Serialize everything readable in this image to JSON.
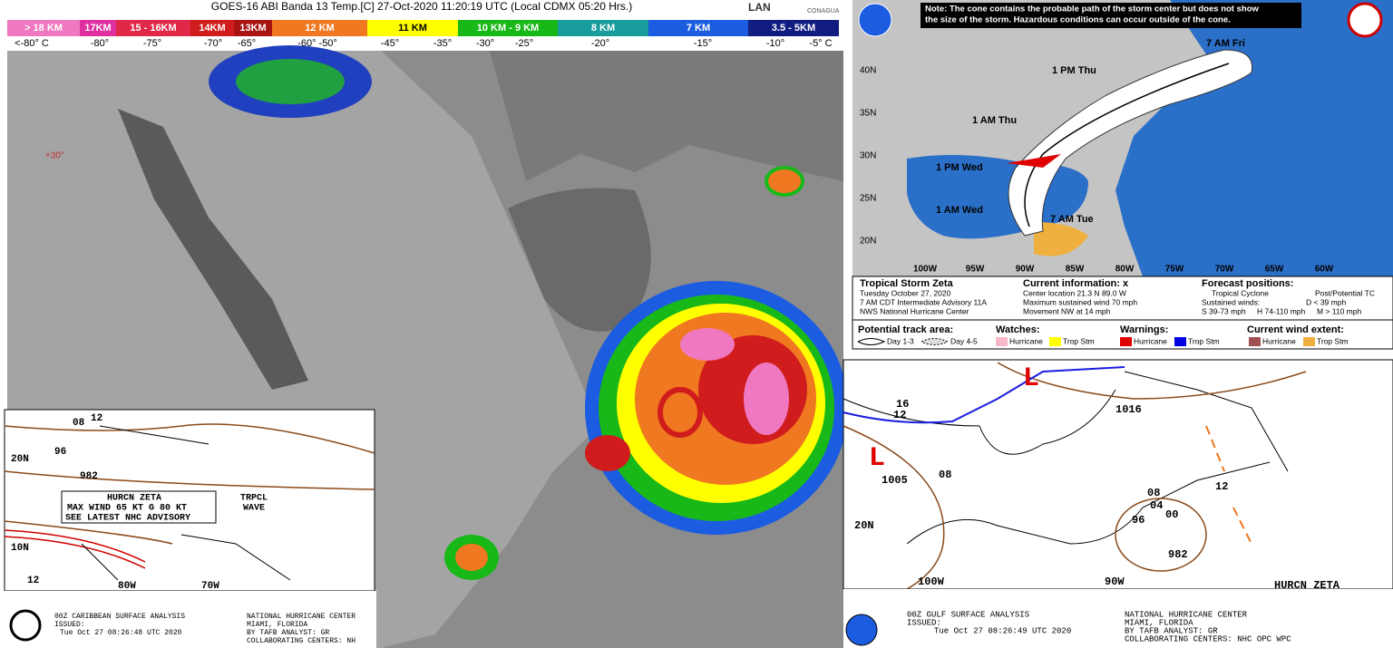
{
  "satellite": {
    "title": "GOES-16 ABI Banda 13 Temp.[C] 27-Oct-2020 11:20:19 UTC (Local CDMX  05:20 Hrs.)",
    "scale": [
      {
        "label": "> 18 KM",
        "color": "#f078c0"
      },
      {
        "label": "17KM",
        "color": "#e030a0"
      },
      {
        "label": "15 - 16KM",
        "color": "#e02848"
      },
      {
        "label": "14KM",
        "color": "#d01c1c"
      },
      {
        "label": "13KM",
        "color": "#a81414"
      },
      {
        "label": "12 KM",
        "color": "#f07820"
      },
      {
        "label": "11 KM",
        "color": "#ffff00"
      },
      {
        "label": "10 KM - 9 KM",
        "color": "#18b818"
      },
      {
        "label": "8 KM",
        "color": "#189c9c"
      },
      {
        "label": "7 KM",
        "color": "#1c5ce0"
      },
      {
        "label": "3.5 - 5KM",
        "color": "#101c80"
      }
    ],
    "temps": [
      "<-80° C",
      "-80°",
      "-75°",
      "-70°",
      "-65°",
      "-60° -50°",
      "-45°",
      "-35°",
      "-30°",
      "-25°",
      "-20°",
      "-15°",
      "-10°",
      "-5° C"
    ],
    "logos": [
      "LAN",
      "CONAGUA"
    ],
    "grid_label": "+30°"
  },
  "cone_map": {
    "note": [
      "Note: The cone contains the probable path of the storm center but does not show",
      "the size of the storm. Hazardous conditions can occur outside of the cone."
    ],
    "times": [
      "7 AM Fri",
      "1 PM Thu",
      "1 AM Thu",
      "1 PM Wed",
      "1 AM Wed",
      "7 AM Tue"
    ],
    "lats": [
      "40N",
      "35N",
      "30N",
      "25N",
      "20N"
    ],
    "lons": [
      "100W",
      "95W",
      "90W",
      "85W",
      "80W",
      "75W",
      "70W",
      "65W",
      "60W"
    ],
    "info": [
      "Tropical Storm Zeta",
      "Tuesday October 27, 2020",
      "7 AM CDT Intermediate Advisory 11A",
      "NWS National Hurricane Center",
      "Current information: x",
      "Center location 21.3 N 89.0 W",
      "Maximum sustained wind 70 mph",
      "Movement NW at 14 mph",
      "Forecast positions:",
      "Tropical Cyclone",
      "Post/Potential TC",
      "Sustained winds:",
      "D < 39 mph",
      "S 39-73 mph",
      "H 74-110 mph",
      "M > 110 mph",
      "Potential track area:",
      "Day 1-3",
      "Day 4-5",
      "Watches:",
      "Hurricane",
      "Trop Stm",
      "Warnings:",
      "Hurricane",
      "Trop Stm",
      "Current wind extent:",
      "Hurricane",
      "Trop Stm"
    ]
  },
  "caribbean_analysis": {
    "labels": [
      "HURCN ZETA",
      "MAX WIND 65 KT G 80 KT",
      "SEE LATEST NHC ADVISORY",
      "TRPCL",
      "WAVE",
      "08",
      "12",
      "96",
      "982",
      "20N",
      "10N",
      "80W",
      "70W",
      "12"
    ],
    "footer": [
      "00Z CARIBBEAN SURFACE ANALYSIS",
      "ISSUED:",
      "Tue Oct 27 08:26:48 UTC 2020",
      "NATIONAL HURRICANE CENTER",
      "MIAMI, FLORIDA",
      "BY TAFB ANALYST: GR",
      "COLLABORATING CENTERS: NH"
    ]
  },
  "gulf_analysis": {
    "labels": [
      "1016",
      "16",
      "12",
      "1005",
      "08",
      "08",
      "12",
      "96",
      "04",
      "00",
      "982",
      "HURCN ZETA",
      "100W",
      "90W",
      "20N",
      "L",
      "L"
    ],
    "footer": [
      "00Z GULF SURFACE ANALYSIS",
      "ISSUED:",
      "Tue Oct 27 08:26:49 UTC 2020",
      "NATIONAL HURRICANE CENTER",
      "MIAMI, FLORIDA",
      "BY TAFB ANALYST: GR",
      "COLLABORATING CENTERS: NHC OPC WPC"
    ]
  }
}
